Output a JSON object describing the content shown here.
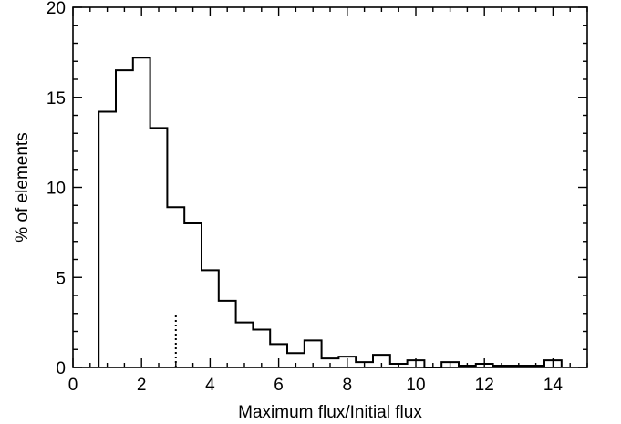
{
  "chart_data": {
    "type": "histogram",
    "title": "",
    "xlabel": "Maximum flux/Initial flux",
    "ylabel": "% of elements",
    "xlim": [
      0,
      15
    ],
    "ylim": [
      0,
      20
    ],
    "x_ticks": [
      "0",
      "2",
      "4",
      "6",
      "8",
      "10",
      "12",
      "14"
    ],
    "y_ticks": [
      "0",
      "5",
      "10",
      "15",
      "20"
    ],
    "bin_width": 0.5,
    "bin_starts": [
      0.75,
      1.25,
      1.75,
      2.25,
      2.75,
      3.25,
      3.75,
      4.25,
      4.75,
      5.25,
      5.75,
      6.25,
      6.75,
      7.25,
      7.75,
      8.25,
      8.75,
      9.25,
      9.75,
      10.25,
      10.75,
      11.25,
      11.75,
      12.25,
      12.75,
      13.25,
      13.75
    ],
    "values": [
      14.2,
      16.5,
      17.2,
      13.3,
      8.9,
      8.0,
      5.4,
      3.7,
      2.5,
      2.1,
      1.3,
      0.8,
      1.5,
      0.5,
      0.6,
      0.3,
      0.7,
      0.2,
      0.4,
      0.0,
      0.3,
      0.1,
      0.2,
      0.1,
      0.1,
      0.1,
      0.4
    ],
    "marker": {
      "x": 3.0,
      "y_top": 3.0,
      "style": "dotted"
    },
    "grid": false,
    "legend": "none"
  }
}
